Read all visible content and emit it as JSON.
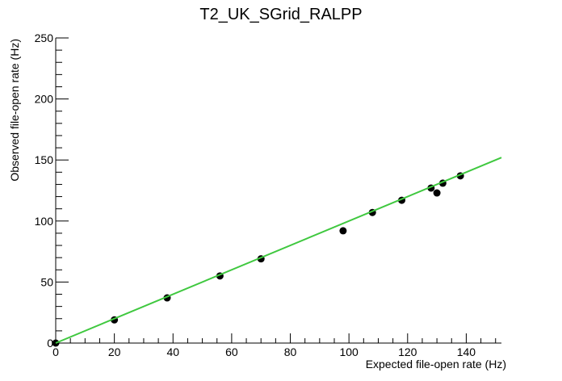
{
  "chart_data": {
    "type": "scatter",
    "title": "T2_UK_SGrid_RALPP",
    "x_label": "Expected file-open rate (Hz)",
    "y_label": "Observed file-open rate (Hz)",
    "x": [
      0,
      20,
      38,
      56,
      70,
      98,
      108,
      118,
      128,
      130,
      132,
      138
    ],
    "values": [
      0,
      19,
      37,
      55,
      69,
      92,
      107,
      117,
      127,
      123,
      131,
      137
    ],
    "color": "#000000",
    "fit": {
      "x": [
        0,
        152
      ],
      "values": [
        0,
        152
      ],
      "color": "#3fc83f"
    },
    "xlim": [
      0,
      152
    ],
    "xticks": [
      0,
      20,
      40,
      60,
      80,
      100,
      120,
      140
    ],
    "ylim": [
      0,
      250
    ],
    "yticks": [
      0,
      50,
      100,
      150,
      200,
      250
    ],
    "grid": false
  }
}
